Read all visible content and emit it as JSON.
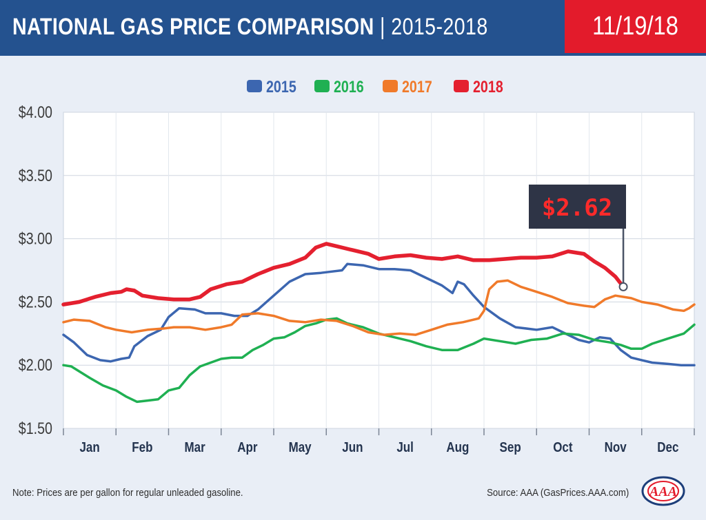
{
  "header": {
    "title_main": "NATIONAL GAS PRICE COMPARISON",
    "title_sep": "|",
    "title_years": "2015-2018",
    "date": "11/19/18"
  },
  "footer": {
    "note": "Note: Prices are per gallon for regular unleaded gasoline.",
    "source": "Source: AAA (GasPrices.AAA.com)",
    "logo_text": "AAA"
  },
  "chart_data": {
    "type": "line",
    "title": "NATIONAL GAS PRICE COMPARISON | 2015-2018",
    "xlabel": "",
    "ylabel": "",
    "x_unit": "month (0 = Jan 1, 12 = Dec 31)",
    "ylim": [
      1.5,
      4.0
    ],
    "yticks": [
      "$1.50",
      "$2.00",
      "$2.50",
      "$3.00",
      "$3.50",
      "$4.00"
    ],
    "ytick_values": [
      1.5,
      2.0,
      2.5,
      3.0,
      3.5,
      4.0
    ],
    "categories": [
      "Jan",
      "Feb",
      "Mar",
      "Apr",
      "May",
      "Jun",
      "Jul",
      "Aug",
      "Sep",
      "Oct",
      "Nov",
      "Dec"
    ],
    "grid": true,
    "legend_placement": "top-center",
    "callout": {
      "label": "$2.62",
      "x": 10.65,
      "y": 2.62,
      "series": "2018"
    },
    "series": [
      {
        "name": "2015",
        "color": "#3c66b0",
        "points": [
          [
            0,
            2.24
          ],
          [
            0.2,
            2.18
          ],
          [
            0.45,
            2.08
          ],
          [
            0.7,
            2.04
          ],
          [
            0.9,
            2.03
          ],
          [
            1.1,
            2.05
          ],
          [
            1.25,
            2.06
          ],
          [
            1.35,
            2.15
          ],
          [
            1.6,
            2.23
          ],
          [
            1.85,
            2.28
          ],
          [
            2.0,
            2.38
          ],
          [
            2.2,
            2.45
          ],
          [
            2.5,
            2.44
          ],
          [
            2.7,
            2.41
          ],
          [
            3.0,
            2.41
          ],
          [
            3.25,
            2.39
          ],
          [
            3.5,
            2.39
          ],
          [
            3.7,
            2.44
          ],
          [
            4.0,
            2.55
          ],
          [
            4.3,
            2.66
          ],
          [
            4.6,
            2.72
          ],
          [
            4.9,
            2.73
          ],
          [
            5.1,
            2.74
          ],
          [
            5.3,
            2.75
          ],
          [
            5.4,
            2.8
          ],
          [
            5.7,
            2.79
          ],
          [
            6.0,
            2.76
          ],
          [
            6.3,
            2.76
          ],
          [
            6.6,
            2.75
          ],
          [
            6.9,
            2.69
          ],
          [
            7.2,
            2.63
          ],
          [
            7.4,
            2.57
          ],
          [
            7.5,
            2.66
          ],
          [
            7.62,
            2.64
          ],
          [
            7.8,
            2.55
          ],
          [
            8.0,
            2.46
          ],
          [
            8.3,
            2.37
          ],
          [
            8.6,
            2.3
          ],
          [
            9.0,
            2.28
          ],
          [
            9.3,
            2.3
          ],
          [
            9.5,
            2.26
          ],
          [
            9.8,
            2.2
          ],
          [
            10.0,
            2.18
          ],
          [
            10.2,
            2.22
          ],
          [
            10.4,
            2.21
          ],
          [
            10.6,
            2.12
          ],
          [
            10.8,
            2.06
          ],
          [
            11.0,
            2.04
          ],
          [
            11.2,
            2.02
          ],
          [
            11.5,
            2.01
          ],
          [
            11.75,
            2.0
          ],
          [
            12,
            2.0
          ]
        ]
      },
      {
        "name": "2016",
        "color": "#1fb052",
        "points": [
          [
            0,
            2.0
          ],
          [
            0.15,
            1.99
          ],
          [
            0.5,
            1.9
          ],
          [
            0.75,
            1.84
          ],
          [
            1.0,
            1.8
          ],
          [
            1.2,
            1.75
          ],
          [
            1.4,
            1.71
          ],
          [
            1.6,
            1.72
          ],
          [
            1.8,
            1.73
          ],
          [
            2.0,
            1.8
          ],
          [
            2.2,
            1.82
          ],
          [
            2.4,
            1.92
          ],
          [
            2.6,
            1.99
          ],
          [
            2.8,
            2.02
          ],
          [
            3.0,
            2.05
          ],
          [
            3.2,
            2.06
          ],
          [
            3.4,
            2.06
          ],
          [
            3.6,
            2.12
          ],
          [
            3.8,
            2.16
          ],
          [
            4.0,
            2.21
          ],
          [
            4.2,
            2.22
          ],
          [
            4.4,
            2.26
          ],
          [
            4.6,
            2.31
          ],
          [
            4.8,
            2.33
          ],
          [
            5.0,
            2.36
          ],
          [
            5.2,
            2.37
          ],
          [
            5.4,
            2.33
          ],
          [
            5.7,
            2.3
          ],
          [
            6.0,
            2.25
          ],
          [
            6.3,
            2.22
          ],
          [
            6.6,
            2.19
          ],
          [
            6.9,
            2.15
          ],
          [
            7.2,
            2.12
          ],
          [
            7.5,
            2.12
          ],
          [
            7.8,
            2.17
          ],
          [
            8.0,
            2.21
          ],
          [
            8.3,
            2.19
          ],
          [
            8.6,
            2.17
          ],
          [
            8.9,
            2.2
          ],
          [
            9.2,
            2.21
          ],
          [
            9.5,
            2.25
          ],
          [
            9.8,
            2.24
          ],
          [
            10.1,
            2.2
          ],
          [
            10.4,
            2.18
          ],
          [
            10.6,
            2.16
          ],
          [
            10.8,
            2.13
          ],
          [
            11.0,
            2.13
          ],
          [
            11.2,
            2.17
          ],
          [
            11.5,
            2.21
          ],
          [
            11.8,
            2.25
          ],
          [
            12,
            2.32
          ]
        ]
      },
      {
        "name": "2017",
        "color": "#f07a2a",
        "points": [
          [
            0,
            2.34
          ],
          [
            0.2,
            2.36
          ],
          [
            0.5,
            2.35
          ],
          [
            0.8,
            2.3
          ],
          [
            1.0,
            2.28
          ],
          [
            1.3,
            2.26
          ],
          [
            1.6,
            2.28
          ],
          [
            1.9,
            2.29
          ],
          [
            2.1,
            2.3
          ],
          [
            2.4,
            2.3
          ],
          [
            2.7,
            2.28
          ],
          [
            3.0,
            2.3
          ],
          [
            3.2,
            2.32
          ],
          [
            3.4,
            2.4
          ],
          [
            3.7,
            2.41
          ],
          [
            4.0,
            2.39
          ],
          [
            4.3,
            2.35
          ],
          [
            4.6,
            2.34
          ],
          [
            4.9,
            2.36
          ],
          [
            5.2,
            2.35
          ],
          [
            5.5,
            2.31
          ],
          [
            5.8,
            2.26
          ],
          [
            6.1,
            2.24
          ],
          [
            6.4,
            2.25
          ],
          [
            6.7,
            2.24
          ],
          [
            7.0,
            2.28
          ],
          [
            7.3,
            2.32
          ],
          [
            7.6,
            2.34
          ],
          [
            7.9,
            2.37
          ],
          [
            8.0,
            2.43
          ],
          [
            8.1,
            2.6
          ],
          [
            8.25,
            2.66
          ],
          [
            8.45,
            2.67
          ],
          [
            8.7,
            2.62
          ],
          [
            9.0,
            2.58
          ],
          [
            9.3,
            2.54
          ],
          [
            9.6,
            2.49
          ],
          [
            9.9,
            2.47
          ],
          [
            10.1,
            2.46
          ],
          [
            10.3,
            2.52
          ],
          [
            10.5,
            2.55
          ],
          [
            10.8,
            2.53
          ],
          [
            11.0,
            2.5
          ],
          [
            11.3,
            2.48
          ],
          [
            11.6,
            2.44
          ],
          [
            11.8,
            2.43
          ],
          [
            11.9,
            2.45
          ],
          [
            12,
            2.48
          ]
        ]
      },
      {
        "name": "2018",
        "color": "#e4202f",
        "points": [
          [
            0,
            2.48
          ],
          [
            0.3,
            2.5
          ],
          [
            0.6,
            2.54
          ],
          [
            0.9,
            2.57
          ],
          [
            1.1,
            2.58
          ],
          [
            1.2,
            2.6
          ],
          [
            1.35,
            2.59
          ],
          [
            1.5,
            2.55
          ],
          [
            1.8,
            2.53
          ],
          [
            2.1,
            2.52
          ],
          [
            2.4,
            2.52
          ],
          [
            2.6,
            2.54
          ],
          [
            2.8,
            2.6
          ],
          [
            3.1,
            2.64
          ],
          [
            3.4,
            2.66
          ],
          [
            3.7,
            2.72
          ],
          [
            4.0,
            2.77
          ],
          [
            4.3,
            2.8
          ],
          [
            4.6,
            2.85
          ],
          [
            4.8,
            2.93
          ],
          [
            5.0,
            2.96
          ],
          [
            5.2,
            2.94
          ],
          [
            5.5,
            2.91
          ],
          [
            5.8,
            2.88
          ],
          [
            6.0,
            2.84
          ],
          [
            6.3,
            2.86
          ],
          [
            6.6,
            2.87
          ],
          [
            6.9,
            2.85
          ],
          [
            7.2,
            2.84
          ],
          [
            7.5,
            2.86
          ],
          [
            7.8,
            2.83
          ],
          [
            8.1,
            2.83
          ],
          [
            8.4,
            2.84
          ],
          [
            8.7,
            2.85
          ],
          [
            9.0,
            2.85
          ],
          [
            9.3,
            2.86
          ],
          [
            9.6,
            2.9
          ],
          [
            9.9,
            2.88
          ],
          [
            10.1,
            2.82
          ],
          [
            10.3,
            2.77
          ],
          [
            10.5,
            2.7
          ],
          [
            10.65,
            2.62
          ]
        ]
      }
    ]
  }
}
